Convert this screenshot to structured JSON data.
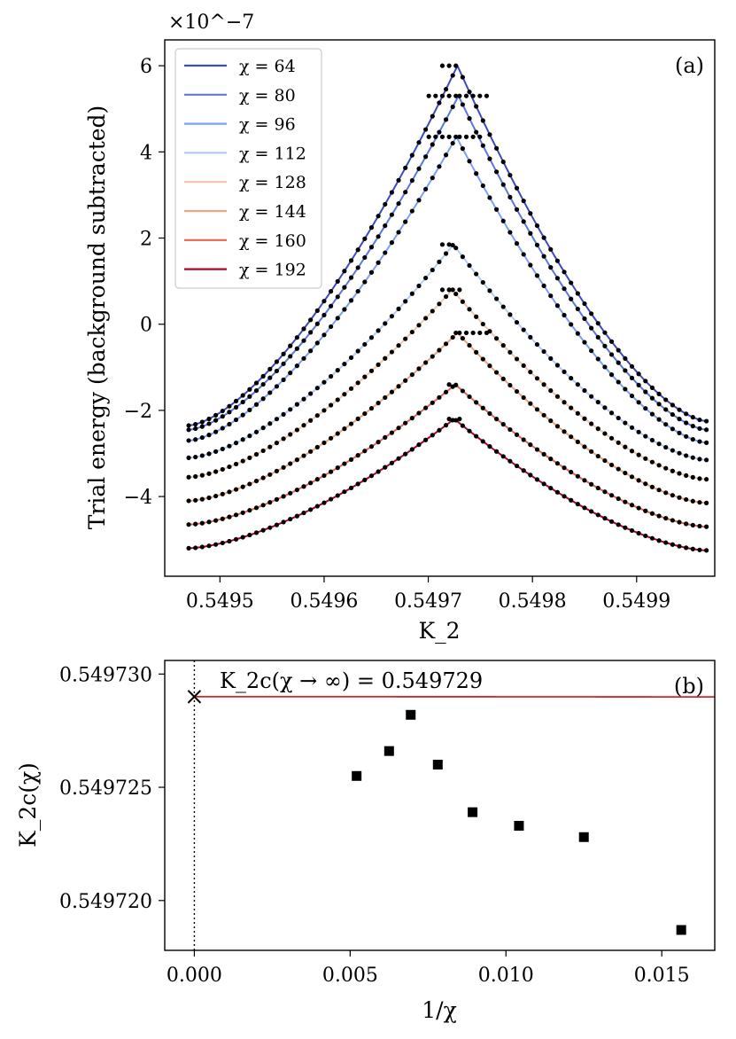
{
  "chart_data": [
    {
      "panel": "(a)",
      "type": "line",
      "xlabel": "K_2",
      "ylabel": "Trial energy (background subtracted)",
      "offset_text": "×10^−7",
      "xlim": [
        0.549447,
        0.549975
      ],
      "ylim": [
        -5.85,
        6.6
      ],
      "xticks": [
        0.5495,
        0.5496,
        0.5497,
        0.5498,
        0.5499
      ],
      "yticks": [
        -4,
        -2,
        0,
        2,
        4,
        6
      ],
      "grid": false,
      "legend_position": "upper-left",
      "series": [
        {
          "name": "χ = 64",
          "color": "#3b4cc0",
          "peak_x": 0.549728,
          "peak_y": 6.0,
          "left_x": 0.54947,
          "left_y": -2.35,
          "right_x": 0.549967,
          "right_y": -2.25,
          "marker_left_end": 0.549728,
          "marker_right_start": 0.549712
        },
        {
          "name": "χ = 80",
          "color": "#5a77db",
          "peak_x": 0.549729,
          "peak_y": 5.3,
          "left_x": 0.54947,
          "left_y": -2.45,
          "right_x": 0.549967,
          "right_y": -2.45,
          "marker_left_end": 0.549759,
          "marker_right_start": 0.549696
        },
        {
          "name": "χ = 96",
          "color": "#7b9ff9",
          "peak_x": 0.549727,
          "peak_y": 4.35,
          "left_x": 0.54947,
          "left_y": -2.7,
          "right_x": 0.549967,
          "right_y": -2.75,
          "marker_left_end": 0.549752,
          "marker_right_start": 0.5497
        },
        {
          "name": "χ = 112",
          "color": "#b4cbf8",
          "peak_x": 0.549724,
          "peak_y": 1.85,
          "left_x": 0.54947,
          "left_y": -3.1,
          "right_x": 0.549967,
          "right_y": -3.15,
          "marker_left_end": 0.549724,
          "marker_right_start": 0.54971
        },
        {
          "name": "χ = 128",
          "color": "#f2c5ac",
          "peak_x": 0.549723,
          "peak_y": 0.8,
          "left_x": 0.54947,
          "left_y": -3.55,
          "right_x": 0.549967,
          "right_y": -3.6,
          "marker_left_end": 0.549733,
          "marker_right_start": 0.549713
        },
        {
          "name": "χ = 144",
          "color": "#f4a27b",
          "peak_x": 0.549728,
          "peak_y": -0.2,
          "left_x": 0.54947,
          "left_y": -4.1,
          "right_x": 0.549967,
          "right_y": -4.15,
          "marker_left_end": 0.549756,
          "marker_right_start": 0.549721
        },
        {
          "name": "χ = 160",
          "color": "#e66650",
          "peak_x": 0.549726,
          "peak_y": -1.4,
          "left_x": 0.54947,
          "left_y": -4.65,
          "right_x": 0.549967,
          "right_y": -4.7,
          "marker_left_end": 0.549729,
          "marker_right_start": 0.549719
        },
        {
          "name": "χ = 192",
          "color": "#b40426",
          "peak_x": 0.549725,
          "peak_y": -2.2,
          "left_x": 0.54947,
          "left_y": -5.2,
          "right_x": 0.549967,
          "right_y": -5.25,
          "marker_left_end": 0.54973,
          "marker_right_start": 0.54972
        }
      ]
    },
    {
      "panel": "(b)",
      "type": "scatter",
      "xlabel": "1/χ",
      "ylabel": "K_2c(χ)",
      "xlim": [
        -0.00095,
        0.0167
      ],
      "ylim": [
        0.5497178,
        0.5497306
      ],
      "xticks": [
        0.0,
        0.005,
        0.01,
        0.015
      ],
      "xtick_labels": [
        "0.000",
        "0.005",
        "0.010",
        "0.015"
      ],
      "yticks": [
        0.54972,
        0.549725,
        0.54973
      ],
      "ytick_labels": [
        "0.549720",
        "0.549725",
        "0.549730"
      ],
      "grid": false,
      "points": [
        {
          "x": 0.005208,
          "y": 0.5497255
        },
        {
          "x": 0.00625,
          "y": 0.5497266
        },
        {
          "x": 0.006944,
          "y": 0.5497282
        },
        {
          "x": 0.0078125,
          "y": 0.549726
        },
        {
          "x": 0.008929,
          "y": 0.5497239
        },
        {
          "x": 0.010417,
          "y": 0.5497233
        },
        {
          "x": 0.0125,
          "y": 0.5497228
        },
        {
          "x": 0.015625,
          "y": 0.5497187
        }
      ],
      "fit": {
        "type": "quadratic",
        "a": 0.549729,
        "b": 0.0,
        "c": -3.8e-05,
        "color": "#d62728"
      },
      "extrapolated_point": {
        "x": 0.0,
        "y": 0.549729
      },
      "annotation": "K_2c(χ → ∞) = 0.549729",
      "vline_x": 0.0
    }
  ]
}
